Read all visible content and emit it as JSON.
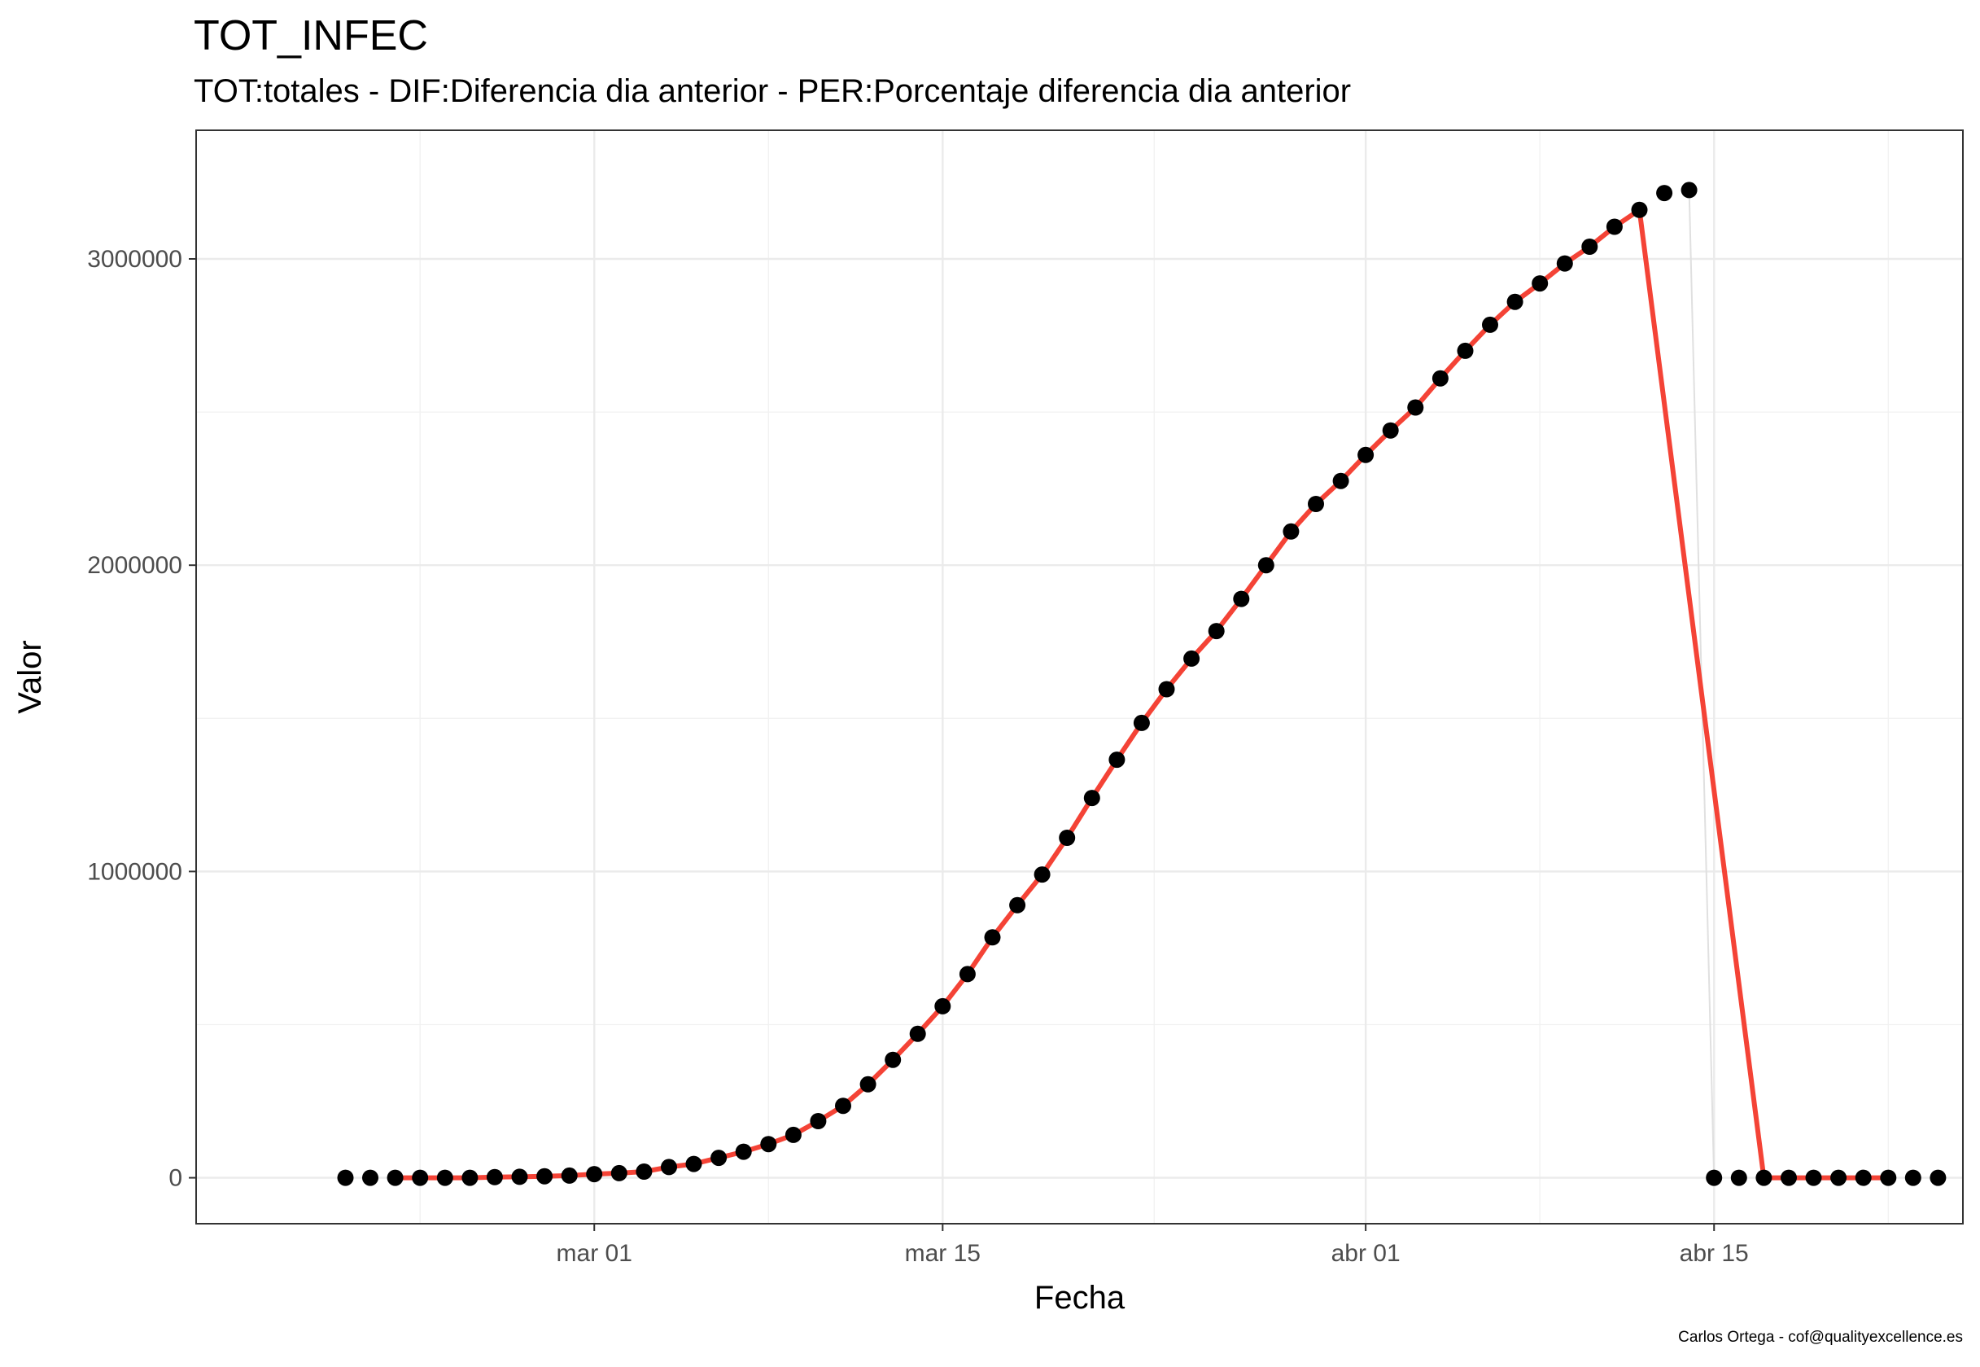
{
  "chart_data": {
    "type": "line",
    "title": "TOT_INFEC",
    "subtitle": "TOT:totales - DIF:Diferencia dia anterior - PER:Porcentaje diferencia dia anterior",
    "caption": "Carlos Ortega - cof@qualityexcellence.es",
    "xlabel": "Fecha",
    "ylabel": "Valor",
    "x_ticks": [
      "mar 01",
      "mar 15",
      "abr 01",
      "abr 15"
    ],
    "y_ticks": [
      "0",
      "1000000",
      "2000000",
      "3000000"
    ],
    "xlim": [
      "2020-02-14",
      "2020-04-25"
    ],
    "ylim": [
      -150000,
      3420000
    ],
    "grid": true,
    "series": [
      {
        "style": "points",
        "color": "#000000",
        "x": [
          "2020-02-20",
          "2020-02-21",
          "2020-02-22",
          "2020-02-23",
          "2020-02-24",
          "2020-02-25",
          "2020-02-26",
          "2020-02-27",
          "2020-02-28",
          "2020-02-29",
          "2020-03-01",
          "2020-03-02",
          "2020-03-03",
          "2020-03-04",
          "2020-03-05",
          "2020-03-06",
          "2020-03-07",
          "2020-03-08",
          "2020-03-09",
          "2020-03-10",
          "2020-03-11",
          "2020-03-12",
          "2020-03-13",
          "2020-03-14",
          "2020-03-15",
          "2020-03-16",
          "2020-03-17",
          "2020-03-18",
          "2020-03-19",
          "2020-03-20",
          "2020-03-21",
          "2020-03-22",
          "2020-03-23",
          "2020-03-24",
          "2020-03-25",
          "2020-03-26",
          "2020-03-27",
          "2020-03-28",
          "2020-03-29",
          "2020-03-30",
          "2020-03-31",
          "2020-04-01",
          "2020-04-02",
          "2020-04-03",
          "2020-04-04",
          "2020-04-05",
          "2020-04-06",
          "2020-04-07",
          "2020-04-08",
          "2020-04-09",
          "2020-04-10",
          "2020-04-11",
          "2020-04-12",
          "2020-04-13",
          "2020-04-14",
          "2020-04-15",
          "2020-04-16",
          "2020-04-17",
          "2020-04-18",
          "2020-04-19",
          "2020-04-20",
          "2020-04-21",
          "2020-04-22",
          "2020-04-23",
          "2020-04-24"
        ],
        "y": [
          0,
          0,
          0,
          0,
          0,
          0,
          2000,
          3000,
          5000,
          7000,
          12000,
          15000,
          20000,
          35000,
          45000,
          65000,
          85000,
          110000,
          140000,
          185000,
          235000,
          305000,
          385000,
          470000,
          560000,
          665000,
          785000,
          890000,
          990000,
          1110000,
          1240000,
          1365000,
          1485000,
          1595000,
          1695000,
          1785000,
          1890000,
          2000000,
          2110000,
          2200000,
          2275000,
          2360000,
          2440000,
          2515000,
          2610000,
          2700000,
          2785000,
          2860000,
          2920000,
          2985000,
          3040000,
          3105000,
          3160000,
          3215000,
          3225000,
          0,
          0,
          0,
          0,
          0,
          0,
          0,
          0,
          0,
          0
        ]
      },
      {
        "style": "line",
        "color": "#f44336",
        "x": [
          "2020-02-22",
          "2020-02-23",
          "2020-02-24",
          "2020-02-25",
          "2020-02-26",
          "2020-02-27",
          "2020-02-28",
          "2020-02-29",
          "2020-03-01",
          "2020-03-02",
          "2020-03-03",
          "2020-03-04",
          "2020-03-05",
          "2020-03-06",
          "2020-03-07",
          "2020-03-08",
          "2020-03-09",
          "2020-03-10",
          "2020-03-11",
          "2020-03-12",
          "2020-03-13",
          "2020-03-14",
          "2020-03-15",
          "2020-03-16",
          "2020-03-17",
          "2020-03-18",
          "2020-03-19",
          "2020-03-20",
          "2020-03-21",
          "2020-03-22",
          "2020-03-23",
          "2020-03-24",
          "2020-03-25",
          "2020-03-26",
          "2020-03-27",
          "2020-03-28",
          "2020-03-29",
          "2020-03-30",
          "2020-03-31",
          "2020-04-01",
          "2020-04-02",
          "2020-04-03",
          "2020-04-04",
          "2020-04-05",
          "2020-04-06",
          "2020-04-07",
          "2020-04-08",
          "2020-04-09",
          "2020-04-10",
          "2020-04-11",
          "2020-04-12",
          "2020-04-17",
          "2020-04-18",
          "2020-04-19",
          "2020-04-20",
          "2020-04-21",
          "2020-04-22"
        ],
        "y": [
          0,
          0,
          0,
          0,
          2000,
          3000,
          5000,
          7000,
          12000,
          15000,
          20000,
          35000,
          45000,
          65000,
          85000,
          110000,
          140000,
          185000,
          235000,
          305000,
          385000,
          470000,
          560000,
          665000,
          785000,
          890000,
          990000,
          1110000,
          1240000,
          1365000,
          1485000,
          1595000,
          1695000,
          1785000,
          1890000,
          2000000,
          2110000,
          2200000,
          2275000,
          2360000,
          2440000,
          2515000,
          2610000,
          2700000,
          2785000,
          2860000,
          2920000,
          2985000,
          3040000,
          3105000,
          3160000,
          0,
          0,
          0,
          0,
          0,
          0
        ]
      },
      {
        "style": "line",
        "color": "#e0e0e0",
        "x": [
          "2020-04-14",
          "2020-04-15"
        ],
        "y": [
          3225000,
          0
        ]
      }
    ]
  }
}
